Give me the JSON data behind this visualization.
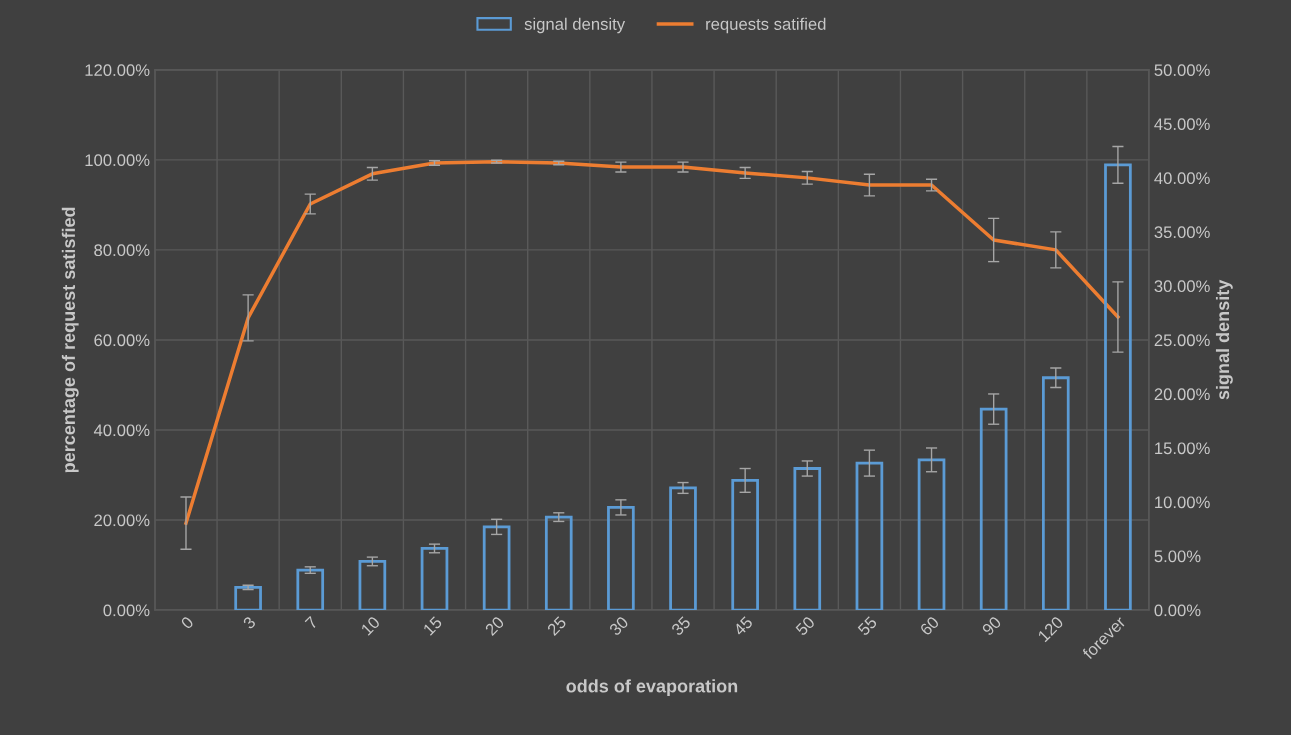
{
  "chart_data": {
    "type": "bar",
    "xlabel": "odds of evaporation",
    "ylabel": "percentage of request satisfied",
    "y2label": "signal density",
    "categories": [
      "0",
      "3",
      "7",
      "10",
      "15",
      "20",
      "25",
      "30",
      "35",
      "45",
      "50",
      "55",
      "60",
      "90",
      "120",
      "forever"
    ],
    "series": [
      {
        "name": "signal density",
        "axis": "y2",
        "color": "#5b9bd5",
        "values": [
          null,
          2.1,
          3.7,
          4.5,
          5.7,
          7.7,
          8.6,
          9.5,
          11.3,
          12.0,
          13.1,
          13.6,
          13.9,
          18.6,
          21.5,
          41.2
        ],
        "errors": [
          null,
          0.2,
          0.3,
          0.4,
          0.4,
          0.7,
          0.4,
          0.7,
          0.5,
          1.1,
          0.7,
          1.2,
          1.1,
          1.4,
          0.9,
          1.7
        ]
      },
      {
        "name": "requests satified",
        "type": "line",
        "color": "#ed7d31",
        "values": [
          19.3,
          64.9,
          90.2,
          96.9,
          99.3,
          99.6,
          99.3,
          98.4,
          98.4,
          97.1,
          96.0,
          94.4,
          94.4,
          82.2,
          80.0,
          65.1
        ],
        "errors": [
          5.8,
          5.1,
          2.2,
          1.4,
          0.5,
          0.3,
          0.4,
          1.1,
          1.1,
          1.2,
          1.4,
          2.4,
          1.3,
          4.8,
          4.0,
          7.8
        ]
      }
    ],
    "ylim": [
      0,
      120
    ],
    "yticks": [
      {
        "value": 0,
        "label": "0.00%"
      },
      {
        "value": 20,
        "label": "20.00%"
      },
      {
        "value": 40,
        "label": "40.00%"
      },
      {
        "value": 60,
        "label": "60.00%"
      },
      {
        "value": 80,
        "label": "80.00%"
      },
      {
        "value": 100,
        "label": "100.00%"
      },
      {
        "value": 120,
        "label": "120.00%"
      }
    ],
    "y2lim": [
      0,
      50
    ],
    "y2ticks": [
      {
        "value": 0,
        "label": "0.00%"
      },
      {
        "value": 5,
        "label": "5.00%"
      },
      {
        "value": 10,
        "label": "10.00%"
      },
      {
        "value": 15,
        "label": "15.00%"
      },
      {
        "value": 20,
        "label": "20.00%"
      },
      {
        "value": 25,
        "label": "25.00%"
      },
      {
        "value": 30,
        "label": "30.00%"
      },
      {
        "value": 35,
        "label": "35.00%"
      },
      {
        "value": 40,
        "label": "40.00%"
      },
      {
        "value": 45,
        "label": "45.00%"
      },
      {
        "value": 50,
        "label": "50.00%"
      }
    ],
    "grid": true,
    "legend": "top",
    "marker": "none",
    "line_style": "solid"
  }
}
